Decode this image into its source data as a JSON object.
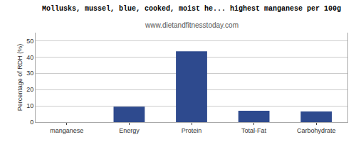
{
  "chart_data": {
    "type": "bar",
    "title": "Mollusks, mussel, blue, cooked, moist he... highest manganese per 100g",
    "subtitle": "www.dietandfitnesstoday.com",
    "categories": [
      "manganese",
      "Energy",
      "Protein",
      "Total-Fat",
      "Carbohydrate"
    ],
    "values": [
      0,
      9.5,
      43.5,
      7.0,
      6.5
    ],
    "color": "#2e4a8e",
    "ylabel": "Percentage of RDH (%)",
    "ylim": [
      0,
      55
    ],
    "yticks": [
      0,
      10,
      20,
      30,
      40,
      50
    ],
    "grid": true
  }
}
